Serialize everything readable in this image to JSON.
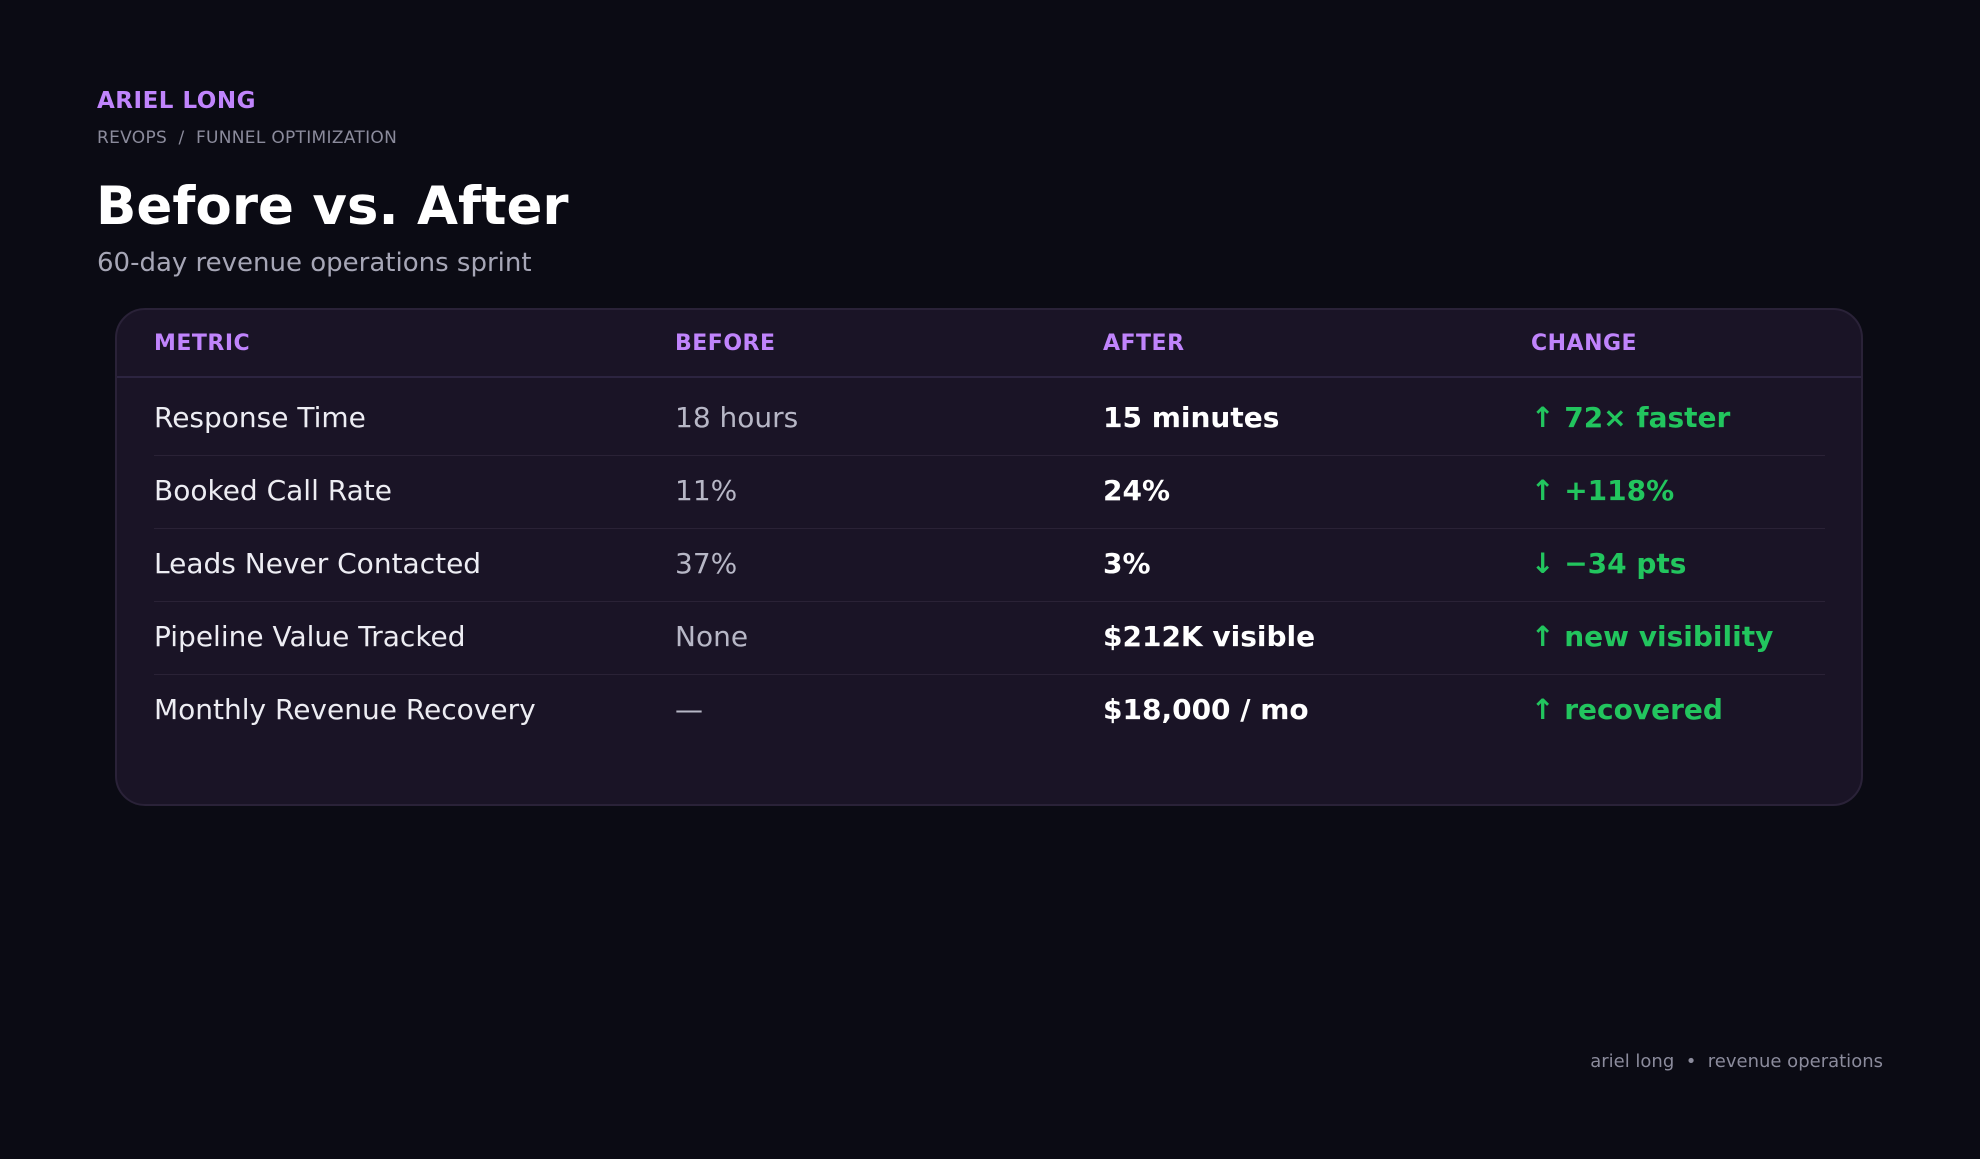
{
  "header": {
    "brand": "ARIEL LONG",
    "breadcrumb": "REVOPS  /  FUNNEL OPTIMIZATION",
    "title": "Before vs. After",
    "subtitle": "60-day revenue operations sprint"
  },
  "table": {
    "columns": [
      "METRIC",
      "BEFORE",
      "AFTER",
      "CHANGE"
    ],
    "rows": [
      {
        "metric": "Response Time",
        "before": "18 hours",
        "after": "15 minutes",
        "change": "↑ 72× faster"
      },
      {
        "metric": "Booked Call Rate",
        "before": "11%",
        "after": "24%",
        "change": "↑ +118%"
      },
      {
        "metric": "Leads Never Contacted",
        "before": "37%",
        "after": "3%",
        "change": "↓ −34 pts"
      },
      {
        "metric": "Pipeline Value Tracked",
        "before": "None",
        "after": "$212K visible",
        "change": "↑ new visibility"
      },
      {
        "metric": "Monthly Revenue Recovery",
        "before": "—",
        "after": "$18,000 / mo",
        "change": "↑ recovered"
      }
    ]
  },
  "footer": {
    "text": "ariel long  •  revenue operations"
  },
  "colors": {
    "background": "#0b0b14",
    "card": "#1a1426",
    "accent": "#c084fc",
    "positive": "#22c55e"
  }
}
